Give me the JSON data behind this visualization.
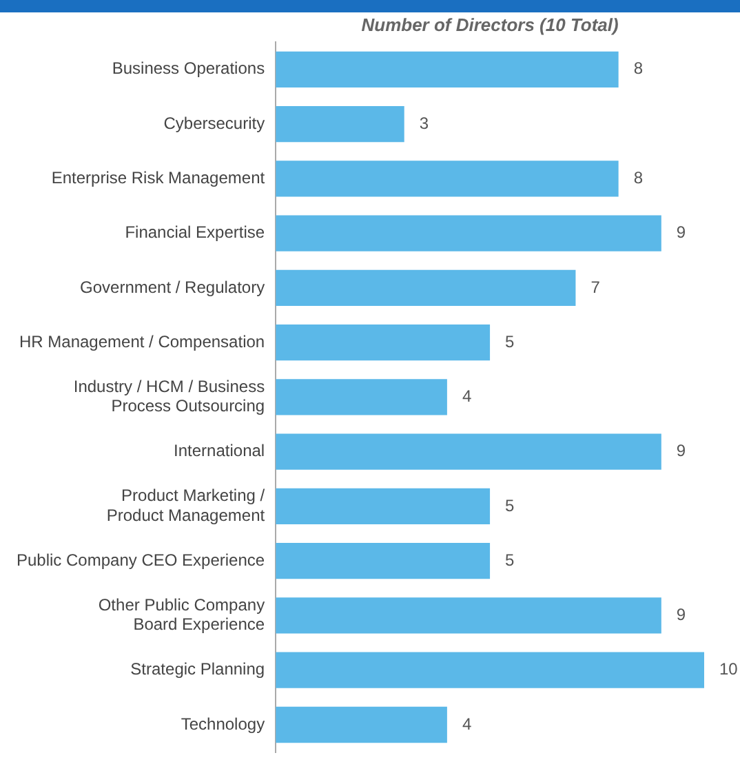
{
  "chart_data": {
    "type": "bar",
    "orientation": "horizontal",
    "xlabel": "Number of Directors (10 Total)",
    "categories": [
      "Business Operations",
      "Cybersecurity",
      "Enterprise Risk Management",
      "Financial Expertise",
      "Government / Regulatory",
      "HR Management / Compensation",
      "Industry / HCM / Business Process Outsourcing",
      "International",
      "Product Marketing / Product Management",
      "Public Company CEO Experience",
      "Other Public Company Board Experience",
      "Strategic Planning",
      "Technology"
    ],
    "values": [
      8,
      3,
      8,
      9,
      7,
      5,
      4,
      9,
      5,
      5,
      9,
      10,
      4
    ],
    "color": "#5bb8e8",
    "xlim": [
      0,
      10
    ],
    "data_labels": true,
    "grid": false,
    "legend": false,
    "tick_labels": "y"
  }
}
